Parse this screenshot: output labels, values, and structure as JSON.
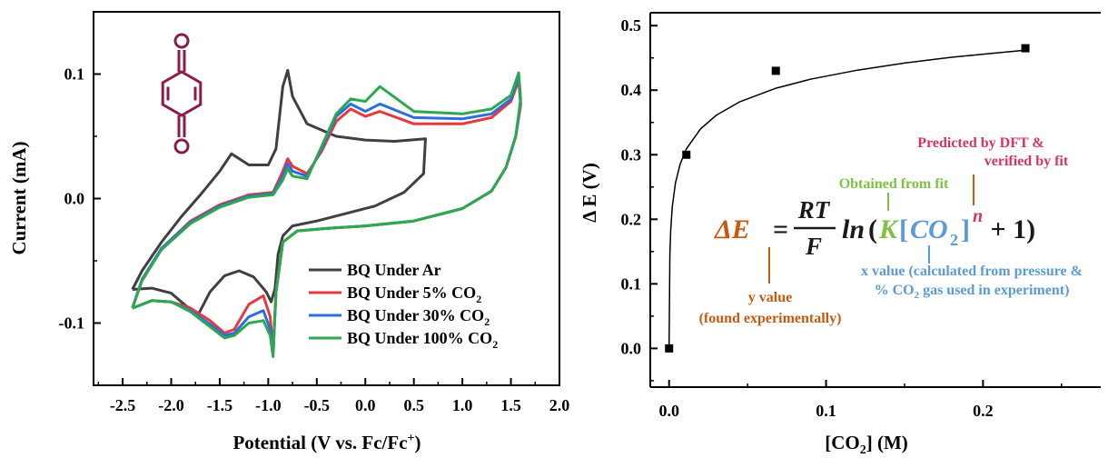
{
  "chart_data": [
    {
      "type": "line",
      "xlabel": "Potential (V vs. Fc/Fc",
      "xlabel_sup": "+",
      "xlabel_end": ")",
      "ylabel": "Current (mA)",
      "xlim": [
        -2.8,
        2.0
      ],
      "ylim": [
        -0.15,
        0.15
      ],
      "x_ticks": [
        -2.5,
        -2.0,
        -1.5,
        -1.0,
        -0.5,
        0.0,
        0.5,
        1.0,
        1.5,
        2.0
      ],
      "x_tick_labels": [
        "-2.5",
        "-2.0",
        "-1.5",
        "-1.0",
        "-0.5",
        "0.0",
        "0.5",
        "1.0",
        "1.5",
        "2.0"
      ],
      "y_ticks": [
        -0.1,
        0.0,
        0.1
      ],
      "y_tick_labels": [
        "-0.1",
        "0.0",
        "0.1"
      ],
      "legend_position": "bottom-right",
      "series": [
        {
          "name": "BQ Under Ar",
          "color": "#404040",
          "points": [
            [
              -2.4,
              -0.073
            ],
            [
              -2.2,
              -0.072
            ],
            [
              -2.0,
              -0.076
            ],
            [
              -1.85,
              -0.086
            ],
            [
              -1.72,
              -0.093
            ],
            [
              -1.6,
              -0.075
            ],
            [
              -1.45,
              -0.062
            ],
            [
              -1.3,
              -0.058
            ],
            [
              -1.15,
              -0.063
            ],
            [
              -1.02,
              -0.075
            ],
            [
              -0.97,
              -0.083
            ],
            [
              -0.93,
              -0.072
            ],
            [
              -0.9,
              -0.045
            ],
            [
              -0.85,
              -0.03
            ],
            [
              -0.75,
              -0.022
            ],
            [
              -0.5,
              -0.018
            ],
            [
              -0.2,
              -0.012
            ],
            [
              0.1,
              -0.006
            ],
            [
              0.4,
              0.005
            ],
            [
              0.6,
              0.02
            ],
            [
              0.62,
              0.048
            ],
            [
              0.3,
              0.046
            ],
            [
              0.0,
              0.047
            ],
            [
              -0.3,
              0.05
            ],
            [
              -0.6,
              0.06
            ],
            [
              -0.75,
              0.082
            ],
            [
              -0.8,
              0.103
            ],
            [
              -0.85,
              0.09
            ],
            [
              -0.92,
              0.04
            ],
            [
              -1.0,
              0.027
            ],
            [
              -1.2,
              0.027
            ],
            [
              -1.38,
              0.036
            ],
            [
              -1.5,
              0.022
            ],
            [
              -1.7,
              0.003
            ],
            [
              -1.9,
              -0.015
            ],
            [
              -2.1,
              -0.035
            ],
            [
              -2.3,
              -0.058
            ],
            [
              -2.4,
              -0.073
            ]
          ]
        },
        {
          "name": "BQ Under 5% CO",
          "name_sub": "2",
          "color": "#e8383d",
          "points": [
            [
              -2.4,
              -0.088
            ],
            [
              -2.2,
              -0.082
            ],
            [
              -2.0,
              -0.083
            ],
            [
              -1.8,
              -0.088
            ],
            [
              -1.6,
              -0.098
            ],
            [
              -1.45,
              -0.108
            ],
            [
              -1.35,
              -0.105
            ],
            [
              -1.2,
              -0.085
            ],
            [
              -1.05,
              -0.078
            ],
            [
              -0.98,
              -0.095
            ],
            [
              -0.95,
              -0.122
            ],
            [
              -0.92,
              -0.075
            ],
            [
              -0.85,
              -0.035
            ],
            [
              -0.7,
              -0.026
            ],
            [
              -0.4,
              -0.024
            ],
            [
              0.0,
              -0.022
            ],
            [
              0.5,
              -0.018
            ],
            [
              1.0,
              -0.008
            ],
            [
              1.3,
              0.006
            ],
            [
              1.45,
              0.025
            ],
            [
              1.55,
              0.05
            ],
            [
              1.6,
              0.075
            ],
            [
              1.58,
              0.095
            ],
            [
              1.5,
              0.078
            ],
            [
              1.3,
              0.065
            ],
            [
              1.0,
              0.06
            ],
            [
              0.5,
              0.06
            ],
            [
              0.15,
              0.07
            ],
            [
              0.0,
              0.066
            ],
            [
              -0.15,
              0.072
            ],
            [
              -0.3,
              0.062
            ],
            [
              -0.45,
              0.038
            ],
            [
              -0.6,
              0.02
            ],
            [
              -0.75,
              0.026
            ],
            [
              -0.8,
              0.032
            ],
            [
              -0.85,
              0.022
            ],
            [
              -0.95,
              0.005
            ],
            [
              -1.2,
              0.003
            ],
            [
              -1.5,
              -0.005
            ],
            [
              -1.8,
              -0.018
            ],
            [
              -2.1,
              -0.04
            ],
            [
              -2.3,
              -0.065
            ],
            [
              -2.4,
              -0.088
            ]
          ]
        },
        {
          "name": "BQ Under 30% CO",
          "name_sub": "2",
          "color": "#2a6fdb",
          "points": [
            [
              -2.4,
              -0.088
            ],
            [
              -2.2,
              -0.082
            ],
            [
              -2.0,
              -0.083
            ],
            [
              -1.8,
              -0.09
            ],
            [
              -1.6,
              -0.101
            ],
            [
              -1.45,
              -0.11
            ],
            [
              -1.35,
              -0.108
            ],
            [
              -1.2,
              -0.095
            ],
            [
              -1.05,
              -0.09
            ],
            [
              -0.98,
              -0.105
            ],
            [
              -0.95,
              -0.125
            ],
            [
              -0.92,
              -0.075
            ],
            [
              -0.85,
              -0.035
            ],
            [
              -0.7,
              -0.026
            ],
            [
              -0.4,
              -0.024
            ],
            [
              0.0,
              -0.022
            ],
            [
              0.5,
              -0.018
            ],
            [
              1.0,
              -0.008
            ],
            [
              1.3,
              0.006
            ],
            [
              1.45,
              0.025
            ],
            [
              1.55,
              0.05
            ],
            [
              1.6,
              0.077
            ],
            [
              1.58,
              0.098
            ],
            [
              1.5,
              0.08
            ],
            [
              1.3,
              0.068
            ],
            [
              1.0,
              0.064
            ],
            [
              0.5,
              0.065
            ],
            [
              0.15,
              0.076
            ],
            [
              0.0,
              0.07
            ],
            [
              -0.15,
              0.076
            ],
            [
              -0.3,
              0.066
            ],
            [
              -0.45,
              0.04
            ],
            [
              -0.6,
              0.018
            ],
            [
              -0.75,
              0.022
            ],
            [
              -0.8,
              0.028
            ],
            [
              -0.85,
              0.018
            ],
            [
              -0.95,
              0.004
            ],
            [
              -1.2,
              0.002
            ],
            [
              -1.5,
              -0.006
            ],
            [
              -1.8,
              -0.019
            ],
            [
              -2.1,
              -0.04
            ],
            [
              -2.3,
              -0.065
            ],
            [
              -2.4,
              -0.088
            ]
          ]
        },
        {
          "name": "BQ Under 100% CO",
          "name_sub": "2",
          "color": "#2ea84f",
          "points": [
            [
              -2.4,
              -0.088
            ],
            [
              -2.2,
              -0.082
            ],
            [
              -2.0,
              -0.083
            ],
            [
              -1.8,
              -0.091
            ],
            [
              -1.6,
              -0.103
            ],
            [
              -1.45,
              -0.112
            ],
            [
              -1.35,
              -0.11
            ],
            [
              -1.2,
              -0.1
            ],
            [
              -1.05,
              -0.098
            ],
            [
              -0.98,
              -0.11
            ],
            [
              -0.95,
              -0.127
            ],
            [
              -0.92,
              -0.075
            ],
            [
              -0.85,
              -0.035
            ],
            [
              -0.7,
              -0.026
            ],
            [
              -0.4,
              -0.024
            ],
            [
              0.0,
              -0.022
            ],
            [
              0.5,
              -0.018
            ],
            [
              1.0,
              -0.008
            ],
            [
              1.3,
              0.006
            ],
            [
              1.45,
              0.025
            ],
            [
              1.55,
              0.05
            ],
            [
              1.6,
              0.08
            ],
            [
              1.58,
              0.101
            ],
            [
              1.5,
              0.083
            ],
            [
              1.3,
              0.072
            ],
            [
              1.0,
              0.068
            ],
            [
              0.5,
              0.07
            ],
            [
              0.15,
              0.09
            ],
            [
              0.0,
              0.078
            ],
            [
              -0.15,
              0.08
            ],
            [
              -0.3,
              0.068
            ],
            [
              -0.45,
              0.042
            ],
            [
              -0.6,
              0.016
            ],
            [
              -0.75,
              0.018
            ],
            [
              -0.8,
              0.024
            ],
            [
              -0.85,
              0.015
            ],
            [
              -0.95,
              0.003
            ],
            [
              -1.2,
              0.001
            ],
            [
              -1.5,
              -0.007
            ],
            [
              -1.8,
              -0.02
            ],
            [
              -2.1,
              -0.041
            ],
            [
              -2.3,
              -0.066
            ],
            [
              -2.4,
              -0.088
            ]
          ]
        }
      ],
      "inset_molecule": "benzoquinone",
      "molecule_color": "#8b1c4a"
    },
    {
      "type": "scatter",
      "xlabel": "[CO",
      "xlabel_sub": "2",
      "xlabel_end": "] (M)",
      "ylabel": "Δ E (V)",
      "xlim": [
        -0.012,
        0.275
      ],
      "ylim": [
        -0.06,
        0.52
      ],
      "x_ticks": [
        0.0,
        0.1,
        0.2
      ],
      "x_tick_labels": [
        "0.0",
        "0.1",
        "0.2"
      ],
      "x_minor_ticks": [
        0.05,
        0.15,
        0.25
      ],
      "y_ticks": [
        0.0,
        0.1,
        0.2,
        0.3,
        0.4,
        0.5
      ],
      "y_tick_labels": [
        "0.0",
        "0.1",
        "0.2",
        "0.3",
        "0.4",
        "0.5"
      ],
      "points": [
        [
          0.0,
          0.0
        ],
        [
          0.011,
          0.3
        ],
        [
          0.068,
          0.43
        ],
        [
          0.227,
          0.465
        ]
      ],
      "fit_curve": [
        [
          0.0,
          0.0
        ],
        [
          0.0005,
          0.146
        ],
        [
          0.001,
          0.183
        ],
        [
          0.002,
          0.219
        ],
        [
          0.004,
          0.256
        ],
        [
          0.007,
          0.285
        ],
        [
          0.011,
          0.309
        ],
        [
          0.02,
          0.34
        ],
        [
          0.03,
          0.361
        ],
        [
          0.045,
          0.382
        ],
        [
          0.068,
          0.403
        ],
        [
          0.09,
          0.417
        ],
        [
          0.12,
          0.431
        ],
        [
          0.15,
          0.442
        ],
        [
          0.18,
          0.451
        ],
        [
          0.21,
          0.458
        ],
        [
          0.227,
          0.462
        ]
      ],
      "equation": {
        "delta_e": "ΔE",
        "equals": "=",
        "numerator": "RT",
        "denominator": "F",
        "ln": "ln",
        "open_paren": "(",
        "k": "K",
        "bracket_open": "[",
        "co": "CO",
        "co_sub": "2",
        "bracket_close": "]",
        "n": "n",
        "plus_one": " + 1)"
      },
      "annotations": {
        "predicted_line1": "Predicted by DFT &",
        "predicted_line2": "verified by fit",
        "obtained": "Obtained from fit",
        "x_value_line1": "x value (calculated from pressure &",
        "x_value_line2_pre": "% CO",
        "x_value_line2_sub": "2",
        "x_value_line2_post": " gas used in experiment)",
        "y_value_line1": "y value",
        "y_value_line2": "(found experimentally)"
      },
      "colors": {
        "orange": "#c55a11",
        "green": "#7dc242",
        "blue": "#5b9bd5",
        "red": "#d6355a",
        "dark": "#1a1a1a"
      }
    }
  ]
}
